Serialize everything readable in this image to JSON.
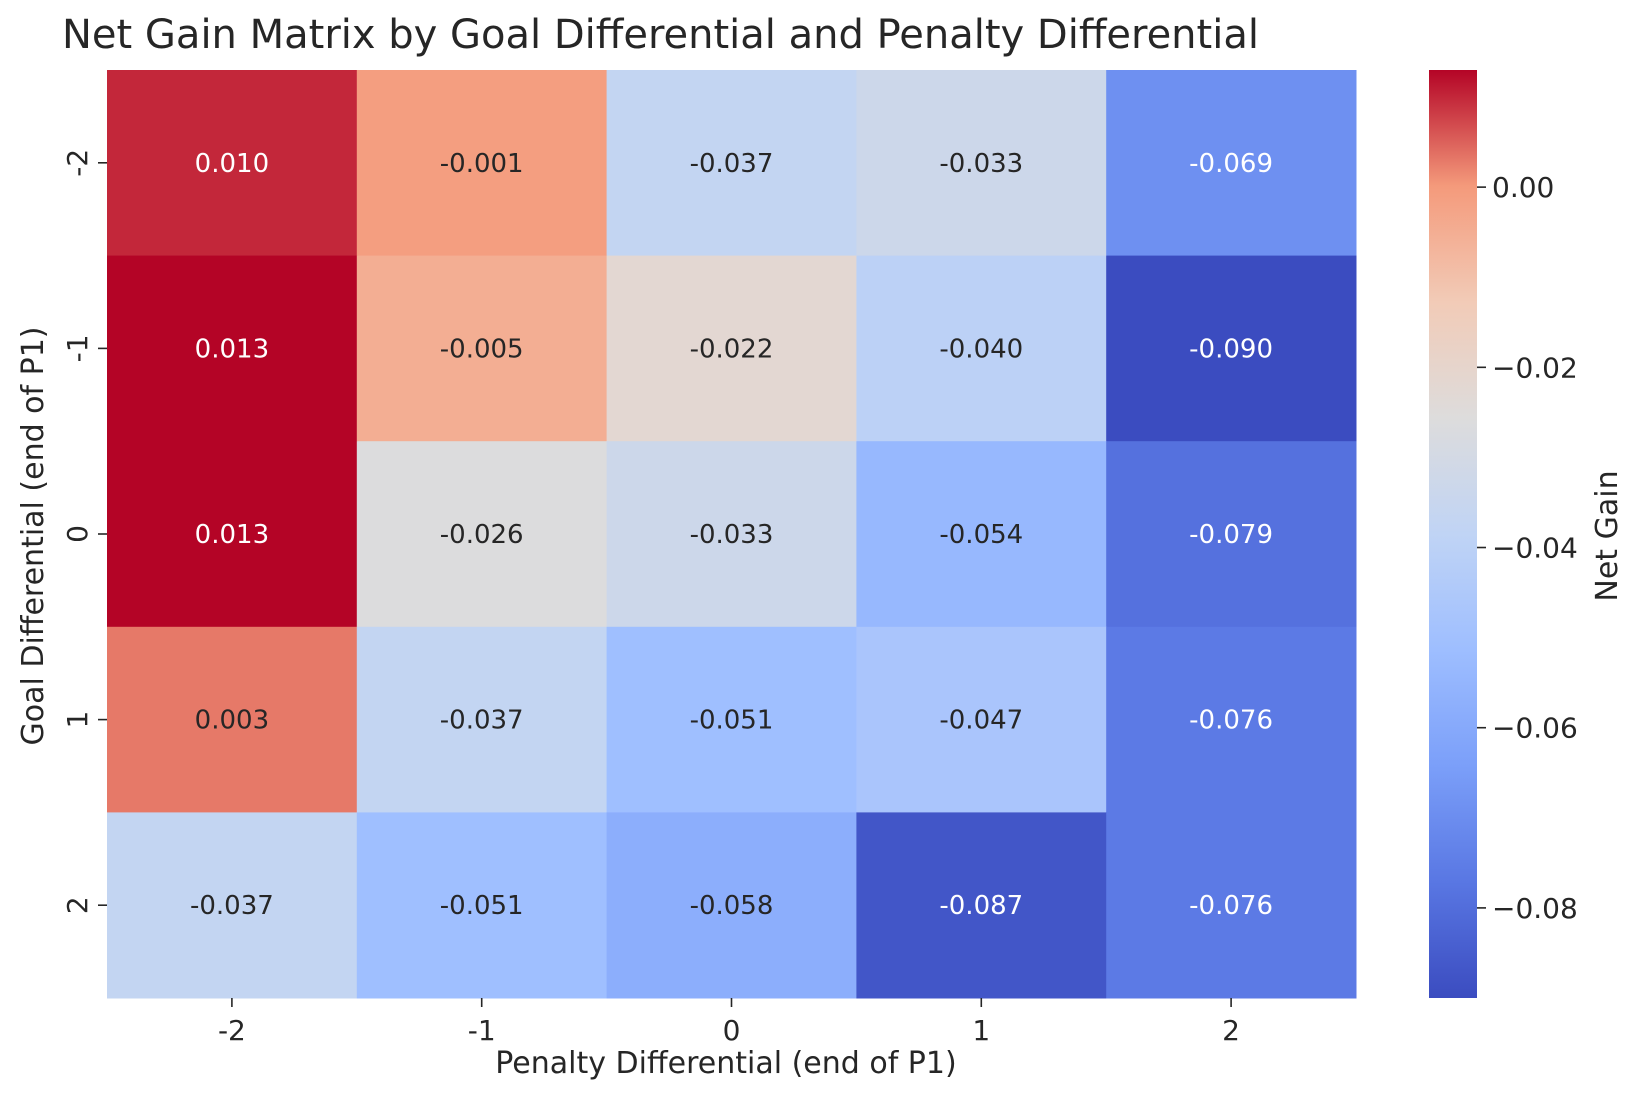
{
  "chart_data": {
    "type": "heatmap",
    "title": "Net Gain Matrix by Goal Differential and Penalty Differential",
    "xlabel": "Penalty Differential (end of P1)",
    "ylabel": "Goal Differential (end of P1)",
    "x_categories": [
      "-2",
      "-1",
      "0",
      "1",
      "2"
    ],
    "y_categories": [
      "-2",
      "-1",
      "0",
      "1",
      "2"
    ],
    "values": [
      [
        0.01,
        -0.001,
        -0.037,
        -0.033,
        -0.069
      ],
      [
        0.013,
        -0.005,
        -0.022,
        -0.04,
        -0.09
      ],
      [
        0.013,
        -0.026,
        -0.033,
        -0.054,
        -0.079
      ],
      [
        0.003,
        -0.037,
        -0.051,
        -0.047,
        -0.076
      ],
      [
        -0.037,
        -0.051,
        -0.058,
        -0.087,
        -0.076
      ]
    ],
    "annotations": [
      [
        "0.010",
        "-0.001",
        "-0.037",
        "-0.033",
        "-0.069"
      ],
      [
        "0.013",
        "-0.005",
        "-0.022",
        "-0.040",
        "-0.090"
      ],
      [
        "0.013",
        "-0.026",
        "-0.033",
        "-0.054",
        "-0.079"
      ],
      [
        "0.003",
        "-0.037",
        "-0.051",
        "-0.047",
        "-0.076"
      ],
      [
        "-0.037",
        "-0.051",
        "-0.058",
        "-0.087",
        "-0.076"
      ]
    ],
    "colorbar": {
      "label": "Net Gain",
      "colormap": "coolwarm",
      "vmin": -0.09,
      "vmax": 0.013,
      "ticks": [
        0.0,
        -0.02,
        -0.04,
        -0.06,
        -0.08
      ],
      "tick_labels": [
        "0.00",
        "−0.02",
        "−0.04",
        "−0.06",
        "−0.08"
      ]
    }
  }
}
